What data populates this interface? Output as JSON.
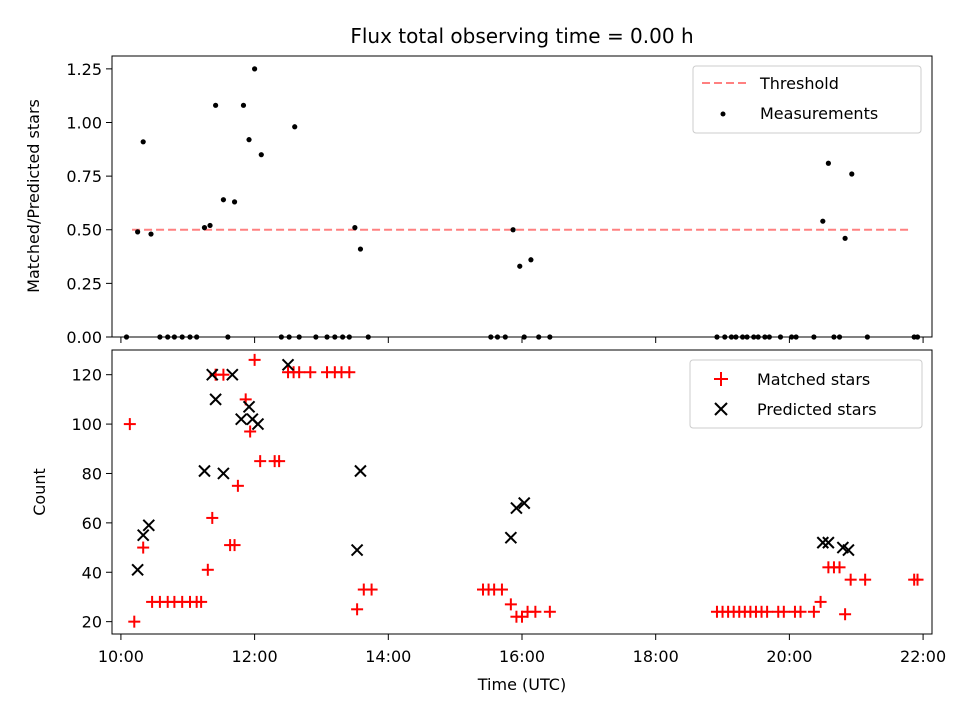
{
  "chart_data": [
    {
      "type": "scatter",
      "title": "Flux total observing time = 0.00 h",
      "xlabel": "",
      "ylabel": "Matched/Predicted stars",
      "ylim": [
        0,
        1.31
      ],
      "xlim": [
        "09:52",
        "22:08"
      ],
      "yticks": [
        "0.00",
        "0.25",
        "0.50",
        "0.75",
        "1.00",
        "1.25"
      ],
      "ytick_values": [
        0,
        0.25,
        0.5,
        0.75,
        1.0,
        1.25
      ],
      "legend_position": "top-right",
      "legend": [
        "Threshold",
        "Measurements"
      ],
      "threshold": {
        "name": "Threshold",
        "value": 0.5,
        "x_start": "10:10",
        "x_end": "21:50",
        "color": "#ff8080"
      },
      "series": [
        {
          "name": "Measurements",
          "color": "#000000",
          "points": [
            [
              "10:05",
              0
            ],
            [
              "10:15",
              0.49
            ],
            [
              "10:20",
              0.91
            ],
            [
              "10:27",
              0.48
            ],
            [
              "10:35",
              0
            ],
            [
              "10:42",
              0
            ],
            [
              "10:48",
              0
            ],
            [
              "10:55",
              0
            ],
            [
              "11:02",
              0
            ],
            [
              "11:08",
              0
            ],
            [
              "11:15",
              0.51
            ],
            [
              "11:20",
              0.52
            ],
            [
              "11:25",
              1.08
            ],
            [
              "11:32",
              0.64
            ],
            [
              "11:36",
              0
            ],
            [
              "11:42",
              0.63
            ],
            [
              "11:50",
              1.08
            ],
            [
              "11:55",
              0.92
            ],
            [
              "12:00",
              1.25
            ],
            [
              "12:06",
              0.85
            ],
            [
              "12:24",
              0
            ],
            [
              "12:31",
              0
            ],
            [
              "12:36",
              0.98
            ],
            [
              "12:40",
              0
            ],
            [
              "12:55",
              0
            ],
            [
              "13:05",
              0
            ],
            [
              "13:12",
              0
            ],
            [
              "13:19",
              0
            ],
            [
              "13:25",
              0
            ],
            [
              "13:30",
              0.51
            ],
            [
              "13:35",
              0.41
            ],
            [
              "13:42",
              0
            ],
            [
              "15:32",
              0
            ],
            [
              "15:38",
              0
            ],
            [
              "15:45",
              0
            ],
            [
              "15:52",
              0.5
            ],
            [
              "15:58",
              0.33
            ],
            [
              "16:02",
              0
            ],
            [
              "16:08",
              0.36
            ],
            [
              "16:15",
              0
            ],
            [
              "16:25",
              0
            ],
            [
              "18:55",
              0
            ],
            [
              "19:02",
              0
            ],
            [
              "19:08",
              0
            ],
            [
              "19:12",
              0
            ],
            [
              "19:18",
              0
            ],
            [
              "19:22",
              0
            ],
            [
              "19:28",
              0
            ],
            [
              "19:32",
              0
            ],
            [
              "19:38",
              0
            ],
            [
              "19:42",
              0
            ],
            [
              "19:52",
              0
            ],
            [
              "20:02",
              0
            ],
            [
              "20:06",
              0
            ],
            [
              "20:22",
              0
            ],
            [
              "20:30",
              0.54
            ],
            [
              "20:35",
              0.81
            ],
            [
              "20:40",
              0
            ],
            [
              "20:45",
              0
            ],
            [
              "20:50",
              0.46
            ],
            [
              "20:56",
              0.76
            ],
            [
              "21:10",
              0
            ],
            [
              "21:52",
              0
            ],
            [
              "21:55",
              0
            ]
          ]
        }
      ]
    },
    {
      "type": "scatter",
      "title": "",
      "xlabel": "Time (UTC)",
      "ylabel": "Count",
      "ylim": [
        15,
        130
      ],
      "xlim": [
        "09:52",
        "22:08"
      ],
      "xticks": [
        "10:00",
        "12:00",
        "14:00",
        "16:00",
        "18:00",
        "20:00",
        "22:00"
      ],
      "yticks": [
        "20",
        "40",
        "60",
        "80",
        "100",
        "120"
      ],
      "ytick_values": [
        20,
        40,
        60,
        80,
        100,
        120
      ],
      "legend_position": "top-right",
      "legend": [
        "Matched stars",
        "Predicted stars"
      ],
      "series": [
        {
          "name": "Matched stars",
          "marker": "plus",
          "color": "#ff0000",
          "points": [
            [
              "10:08",
              100
            ],
            [
              "10:12",
              20
            ],
            [
              "10:20",
              50
            ],
            [
              "10:28",
              28
            ],
            [
              "10:35",
              28
            ],
            [
              "10:42",
              28
            ],
            [
              "10:48",
              28
            ],
            [
              "10:55",
              28
            ],
            [
              "11:02",
              28
            ],
            [
              "11:08",
              28
            ],
            [
              "11:12",
              28
            ],
            [
              "11:18",
              41
            ],
            [
              "11:22",
              62
            ],
            [
              "11:25",
              120
            ],
            [
              "11:32",
              120
            ],
            [
              "11:38",
              51
            ],
            [
              "11:42",
              51
            ],
            [
              "11:45",
              75
            ],
            [
              "11:52",
              110
            ],
            [
              "11:56",
              97
            ],
            [
              "12:00",
              126
            ],
            [
              "12:05",
              85
            ],
            [
              "12:18",
              85
            ],
            [
              "12:22",
              85
            ],
            [
              "12:30",
              121
            ],
            [
              "12:35",
              121
            ],
            [
              "12:40",
              121
            ],
            [
              "12:50",
              121
            ],
            [
              "13:05",
              121
            ],
            [
              "13:12",
              121
            ],
            [
              "13:18",
              121
            ],
            [
              "13:25",
              121
            ],
            [
              "13:32",
              25
            ],
            [
              "13:38",
              33
            ],
            [
              "13:45",
              33
            ],
            [
              "15:25",
              33
            ],
            [
              "15:30",
              33
            ],
            [
              "15:35",
              33
            ],
            [
              "15:42",
              33
            ],
            [
              "15:50",
              27
            ],
            [
              "15:55",
              22
            ],
            [
              "16:00",
              22
            ],
            [
              "16:05",
              24
            ],
            [
              "16:12",
              24
            ],
            [
              "16:25",
              24
            ],
            [
              "18:55",
              24
            ],
            [
              "19:00",
              24
            ],
            [
              "19:05",
              24
            ],
            [
              "19:10",
              24
            ],
            [
              "19:15",
              24
            ],
            [
              "19:20",
              24
            ],
            [
              "19:25",
              24
            ],
            [
              "19:30",
              24
            ],
            [
              "19:35",
              24
            ],
            [
              "19:40",
              24
            ],
            [
              "19:50",
              24
            ],
            [
              "19:55",
              24
            ],
            [
              "20:05",
              24
            ],
            [
              "20:10",
              24
            ],
            [
              "20:22",
              24
            ],
            [
              "20:28",
              28
            ],
            [
              "20:35",
              42
            ],
            [
              "20:40",
              42
            ],
            [
              "20:45",
              42
            ],
            [
              "20:50",
              23
            ],
            [
              "20:55",
              37
            ],
            [
              "21:08",
              37
            ],
            [
              "21:52",
              37
            ],
            [
              "21:55",
              37
            ]
          ]
        },
        {
          "name": "Predicted stars",
          "marker": "x",
          "color": "#000000",
          "points": [
            [
              "10:15",
              41
            ],
            [
              "10:20",
              55
            ],
            [
              "10:25",
              59
            ],
            [
              "11:15",
              81
            ],
            [
              "11:22",
              120
            ],
            [
              "11:25",
              110
            ],
            [
              "11:32",
              80
            ],
            [
              "11:40",
              120
            ],
            [
              "11:48",
              102
            ],
            [
              "11:55",
              107
            ],
            [
              "11:58",
              102
            ],
            [
              "12:03",
              100
            ],
            [
              "12:30",
              124
            ],
            [
              "13:32",
              49
            ],
            [
              "13:35",
              81
            ],
            [
              "15:50",
              54
            ],
            [
              "15:55",
              66
            ],
            [
              "16:02",
              68
            ],
            [
              "20:30",
              52
            ],
            [
              "20:35",
              52
            ],
            [
              "20:48",
              50
            ],
            [
              "20:53",
              49
            ]
          ]
        }
      ]
    }
  ]
}
